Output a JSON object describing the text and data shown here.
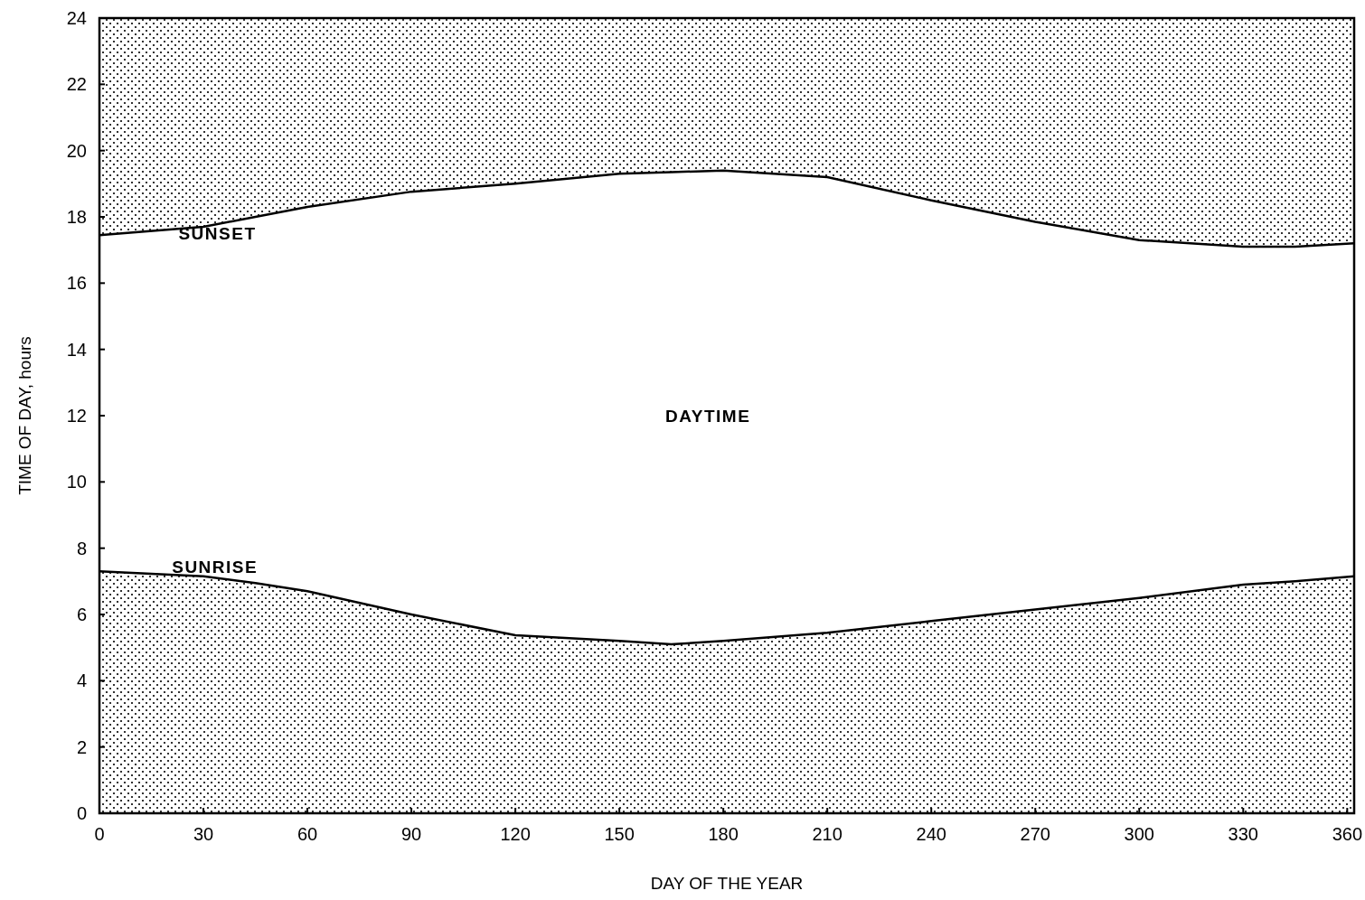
{
  "chart_data": {
    "type": "area",
    "xlabel": "DAY OF THE YEAR",
    "ylabel": "TIME OF DAY, hours",
    "x": [
      0,
      30,
      45,
      60,
      90,
      120,
      150,
      165,
      180,
      210,
      240,
      270,
      300,
      330,
      345,
      362
    ],
    "series": [
      {
        "color": "#000000",
        "values": [
          7.3,
          7.15,
          6.95,
          6.7,
          6.0,
          5.37,
          5.2,
          5.1,
          5.2,
          5.45,
          5.8,
          6.15,
          6.5,
          6.9,
          7.0,
          7.15
        ]
      },
      {
        "type": "line",
        "color": "#000000",
        "values": [
          17.45,
          17.7,
          18.0,
          18.3,
          18.76,
          19.0,
          19.3,
          19.35,
          19.4,
          19.2,
          18.5,
          17.85,
          17.3,
          17.1,
          17.1,
          17.2
        ],
        "lower": [
          17.45,
          17.7,
          18.0,
          18.3,
          18.76,
          19.0,
          19.3,
          19.35,
          19.4,
          19.2,
          18.5,
          17.85,
          17.3,
          17.1,
          17.1,
          17.2
        ],
        "upper": [
          24,
          24,
          24,
          24,
          24,
          24,
          24,
          24,
          24,
          24,
          24,
          24,
          24,
          24,
          24,
          24
        ]
      }
    ],
    "annotations": [
      "SUNSET",
      "SUNRISE",
      "DAYTIME"
    ],
    "xlim": [
      0,
      362
    ],
    "xticks": [
      0,
      30,
      60,
      90,
      120,
      150,
      180,
      210,
      240,
      270,
      300,
      330,
      360
    ],
    "ylim": [
      0,
      24
    ],
    "yticks": [
      0,
      2,
      4,
      6,
      8,
      10,
      12,
      14,
      16,
      18,
      20,
      22,
      24
    ],
    "grid": false
  }
}
